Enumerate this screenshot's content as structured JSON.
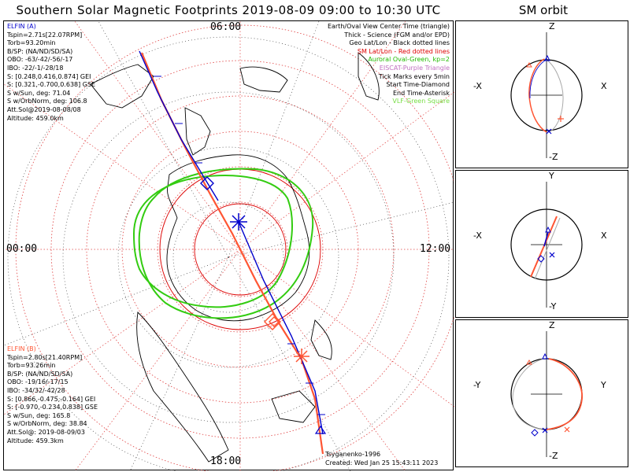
{
  "title": "Southern Solar Magnetic Footprints 2019-08-09 09:00 to 10:30 UTC",
  "orbit_title": "SM orbit",
  "clock_labels": {
    "top": "06:00",
    "left": "00:00",
    "right": "12:00",
    "bottom": "18:00"
  },
  "elfin_a": {
    "name": "ELFIN (A)",
    "lines": [
      "Tspin=2.71s[22.07RPM]",
      "Torb=93.20min",
      "B/SP: (NA/ND/SD/SA)",
      "OBO: -63/-42/-56/-17",
      "IBO: -22/-1/-28/18",
      "S: [0.248,0.416,0.874] GEI",
      "S: [0.321,-0.700,0.638] GSE",
      "S w/Sun, deg: 71.04",
      "S w/OrbNorm, deg: 106.8",
      "Att.Sol@2019-08-08/08",
      "Altitude: 459.0km"
    ]
  },
  "elfin_b": {
    "name": "ELFIN (B)",
    "lines": [
      "Tspin=2.80s[21.40RPM]",
      "Torb=93.26min",
      "B/SP: (NA/ND/SD/SA)",
      "OBO: -19/16/-17/15",
      "IBO: -34/32/-42/28",
      "S: [0.866,-0.475,-0.164] GEI",
      "S: [-0.970,-0.234,0.838] GSE",
      "S w/Sun, deg: 165.8",
      "S w/OrbNorm, deg: 38.84",
      "Att.Sol@: 2019-08-09/03",
      "Altitude: 459.3km"
    ]
  },
  "legend": [
    {
      "text": "Earth/Oval View Center Time (triangle)",
      "color": "black"
    },
    {
      "text": "Thick - Science (FGM and/or EPD)",
      "color": "black"
    },
    {
      "text": "Geo Lat/Lon - Black dotted lines",
      "color": "black"
    },
    {
      "text": "SM Lat/Lon - Red dotted lines",
      "color": "red"
    },
    {
      "text": "Auroral Oval-Green, kp=2",
      "color": "green"
    },
    {
      "text": "EISCAT-Purple Triangle",
      "color": "purple"
    },
    {
      "text": "Tick Marks every 5min",
      "color": "black"
    },
    {
      "text": "Start Time-Diamond",
      "color": "black"
    },
    {
      "text": "End Time-Asterisk",
      "color": "black"
    },
    {
      "text": "VLF-Green Square",
      "color": "lgreen"
    }
  ],
  "credits": {
    "model": "Tsyganenko-1996",
    "created": "Created: Wed Jan 25 15:43:11 2023"
  },
  "orbit_panels": [
    {
      "top": "Z",
      "bottom": "-Z",
      "left": "-X",
      "right": "X"
    },
    {
      "top": "Y",
      "bottom": "-Y",
      "left": "-X",
      "right": "X"
    },
    {
      "top": "Z",
      "bottom": "-Z",
      "left": "-Y",
      "right": "Y"
    }
  ],
  "colors": {
    "elfin_a": "#0000cc",
    "elfin_b": "#ff5533",
    "oval": "#33cc11",
    "sm_grid": "#dd0000"
  }
}
